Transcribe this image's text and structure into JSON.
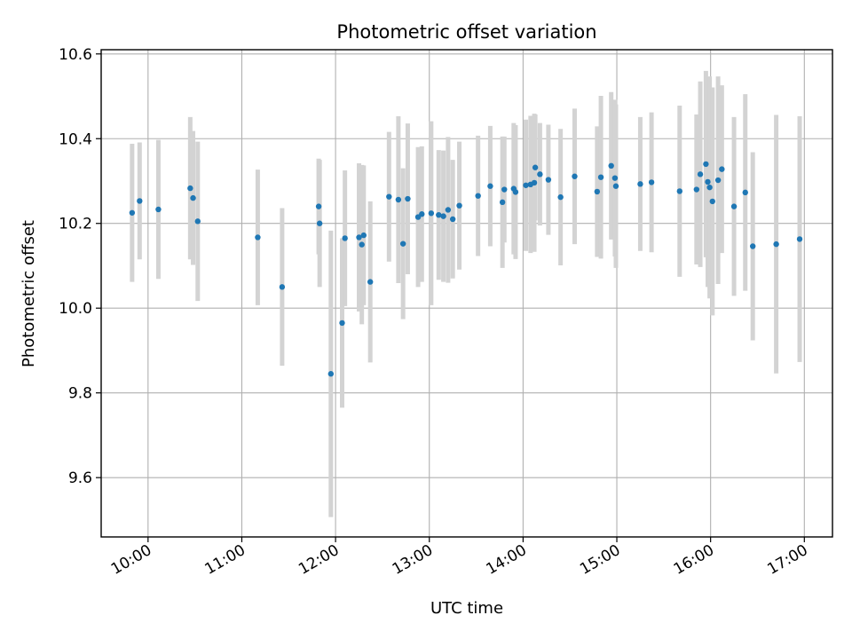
{
  "chart_data": {
    "type": "scatter",
    "title": "Photometric offset variation",
    "xlabel": "UTC time",
    "ylabel": "Photometric offset",
    "xlim_hours": [
      9.5,
      17.3
    ],
    "ylim": [
      9.46,
      10.61
    ],
    "x_ticks": [
      {
        "hour": 10,
        "label": "10:00"
      },
      {
        "hour": 11,
        "label": "11:00"
      },
      {
        "hour": 12,
        "label": "12:00"
      },
      {
        "hour": 13,
        "label": "13:00"
      },
      {
        "hour": 14,
        "label": "14:00"
      },
      {
        "hour": 15,
        "label": "15:00"
      },
      {
        "hour": 16,
        "label": "16:00"
      },
      {
        "hour": 17,
        "label": "17:00"
      }
    ],
    "y_ticks": [
      {
        "value": 9.6,
        "label": "9.6"
      },
      {
        "value": 9.8,
        "label": "9.8"
      },
      {
        "value": 10.0,
        "label": "10.0"
      },
      {
        "value": 10.2,
        "label": "10.2"
      },
      {
        "value": 10.4,
        "label": "10.4"
      },
      {
        "value": 10.6,
        "label": "10.6"
      }
    ],
    "grid": true,
    "colors": {
      "point": "#1f77b4",
      "errorbar": "#d3d3d3",
      "grid": "#b0b0b0",
      "axis": "#000000"
    },
    "series": [
      {
        "name": "offset",
        "x_hours": [
          9.83,
          9.91,
          10.11,
          10.45,
          10.48,
          10.53,
          11.17,
          11.43,
          11.82,
          11.83,
          11.95,
          12.07,
          12.1,
          12.25,
          12.28,
          12.3,
          12.37,
          12.57,
          12.67,
          12.72,
          12.77,
          12.88,
          12.92,
          13.02,
          13.1,
          13.15,
          13.2,
          13.25,
          13.32,
          13.52,
          13.65,
          13.78,
          13.8,
          13.9,
          13.92,
          14.03,
          14.08,
          14.12,
          14.13,
          14.18,
          14.27,
          14.4,
          14.55,
          14.79,
          14.83,
          14.94,
          14.98,
          14.99,
          15.25,
          15.37,
          15.67,
          15.85,
          15.89,
          15.95,
          15.97,
          15.99,
          16.02,
          16.08,
          16.12,
          16.25,
          16.37,
          16.45,
          16.7,
          16.95
        ],
        "y": [
          10.225,
          10.253,
          10.233,
          10.283,
          10.26,
          10.205,
          10.167,
          10.05,
          10.24,
          10.2,
          9.845,
          9.965,
          10.165,
          10.167,
          10.15,
          10.172,
          10.062,
          10.263,
          10.256,
          10.152,
          10.258,
          10.215,
          10.222,
          10.224,
          10.22,
          10.217,
          10.232,
          10.21,
          10.242,
          10.265,
          10.288,
          10.25,
          10.28,
          10.282,
          10.274,
          10.29,
          10.292,
          10.296,
          10.332,
          10.316,
          10.303,
          10.262,
          10.311,
          10.275,
          10.309,
          10.336,
          10.307,
          10.288,
          10.293,
          10.297,
          10.276,
          10.28,
          10.316,
          10.34,
          10.298,
          10.285,
          10.252,
          10.302,
          10.328,
          10.24,
          10.273,
          10.146,
          10.151,
          10.163
        ],
        "y_err": [
          0.163,
          0.138,
          0.164,
          0.168,
          0.158,
          0.188,
          0.16,
          0.186,
          0.113,
          0.15,
          0.338,
          0.2,
          0.16,
          0.175,
          0.188,
          0.165,
          0.19,
          0.153,
          0.197,
          0.178,
          0.178,
          0.165,
          0.16,
          0.217,
          0.153,
          0.155,
          0.172,
          0.14,
          0.151,
          0.142,
          0.142,
          0.155,
          0.125,
          0.155,
          0.158,
          0.155,
          0.162,
          0.163,
          0.125,
          0.121,
          0.13,
          0.161,
          0.16,
          0.154,
          0.192,
          0.174,
          0.185,
          0.193,
          0.158,
          0.165,
          0.202,
          0.177,
          0.219,
          0.22,
          0.248,
          0.262,
          0.269,
          0.245,
          0.198,
          0.211,
          0.232,
          0.222,
          0.305,
          0.29
        ]
      }
    ]
  }
}
